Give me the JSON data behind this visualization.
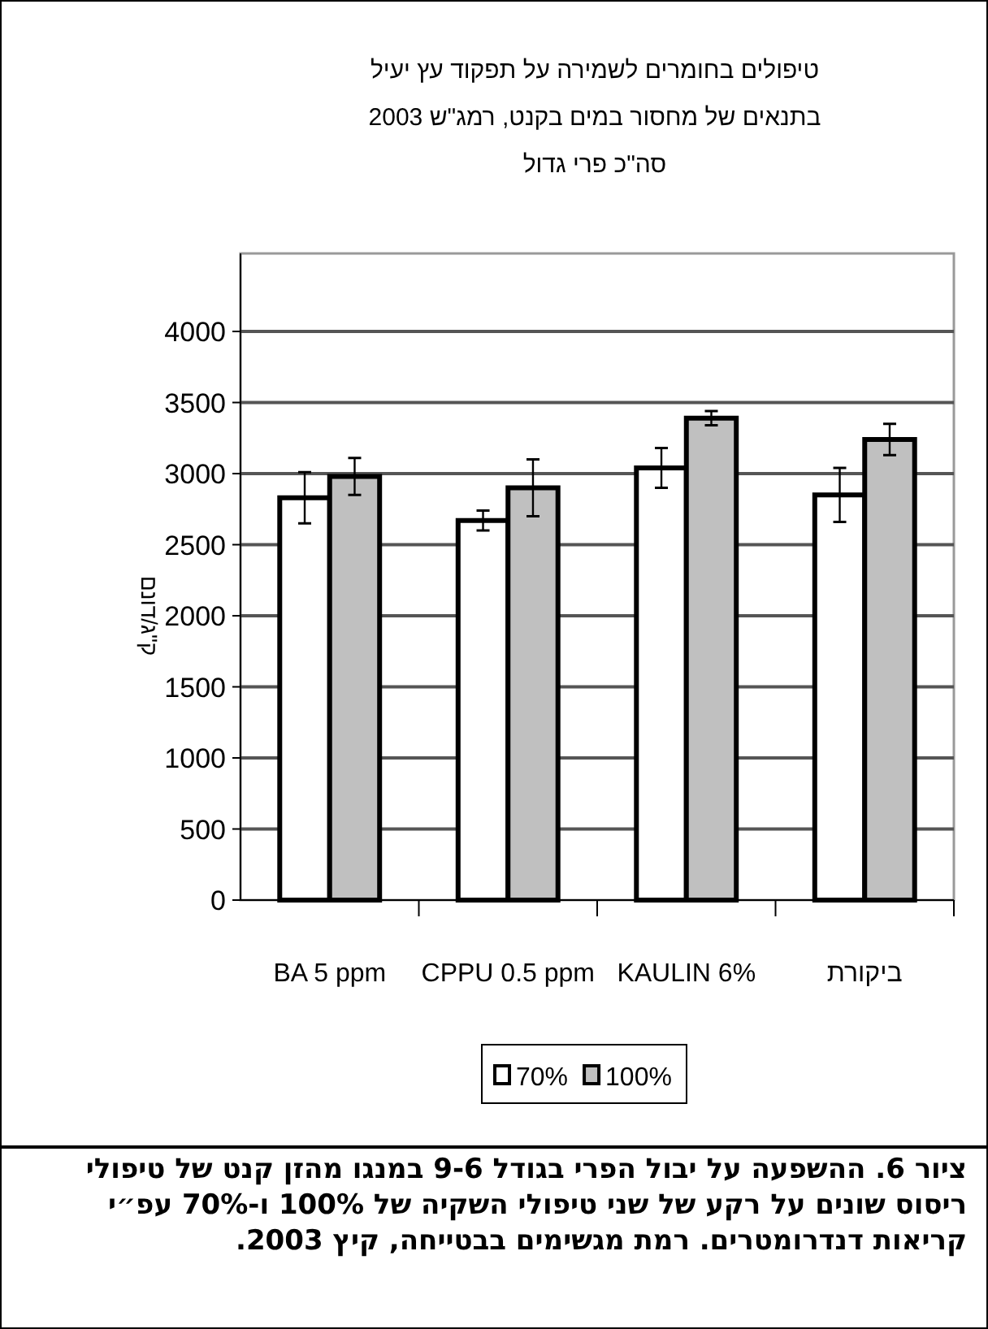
{
  "chart_data": {
    "type": "bar",
    "title": "טיפולים בחומרים לשמירה על תפקוד עץ יעיל\nבתנאים של מחסור במים בקנט, רמג\"ש 2003\nסה\"כ פרי גדול",
    "ylabel": "ק\"ג/דונם",
    "categories": [
      "BA 5 ppm",
      "CPPU 0.5 ppm",
      "KAULIN 6%",
      "ביקורת"
    ],
    "series": [
      {
        "name": "70%",
        "color": "#ffffff",
        "values": [
          2830,
          2670,
          3040,
          2850
        ],
        "errors": [
          180,
          70,
          140,
          190
        ]
      },
      {
        "name": "100%",
        "color": "#c0c0c0",
        "values": [
          2980,
          2900,
          3390,
          3240
        ],
        "errors": [
          130,
          200,
          50,
          110
        ]
      }
    ],
    "ylim": [
      0,
      4000
    ],
    "yticks": [
      0,
      500,
      1000,
      1500,
      2000,
      2500,
      3000,
      3500,
      4000
    ],
    "grid": "y",
    "legend": "bottom",
    "annotations": [
      "ציור 6. ההשפעה על יבול הפרי בגודל 9-6 במנגו מהזן קנט של טיפולי ריסוס שונים על רקע של שני טיפולי השקיה של 100% ו-70% עפ״י קריאות דנדרומטרים. רמת מגשימים בבטייחה, קיץ 2003."
    ]
  }
}
